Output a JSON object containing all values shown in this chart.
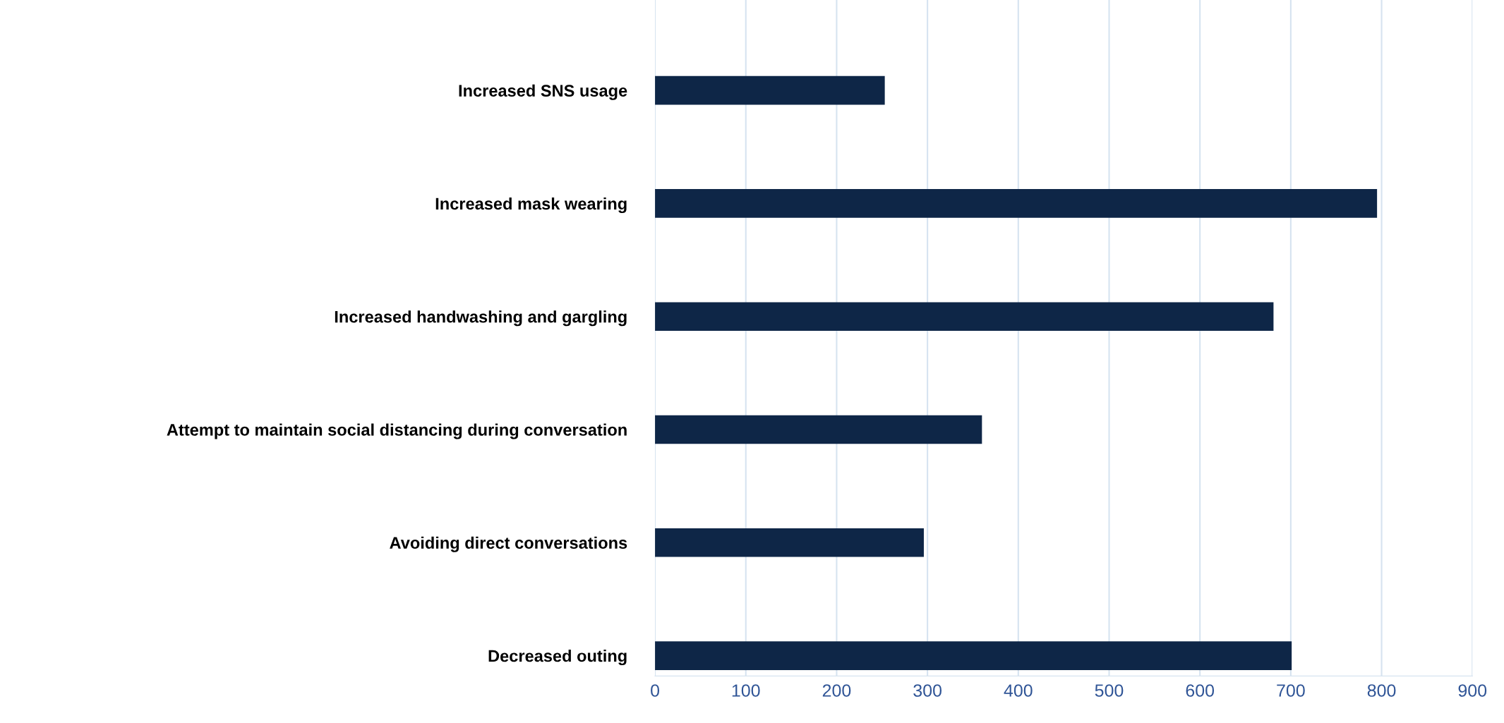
{
  "chart_data": {
    "type": "bar",
    "orientation": "horizontal",
    "categories": [
      "Increased SNS usage",
      "Increased mask wearing",
      "Increased handwashing and gargling",
      "Attempt to maintain social distancing during conversation",
      "Avoiding direct conversations",
      "Decreased outing"
    ],
    "values": [
      253,
      795,
      681,
      360,
      296,
      701
    ],
    "color": "#0e2647",
    "xlim": [
      0,
      900
    ],
    "xticks": [
      0,
      100,
      200,
      300,
      400,
      500,
      600,
      700,
      800,
      900
    ],
    "grid": "x",
    "legend": false
  }
}
